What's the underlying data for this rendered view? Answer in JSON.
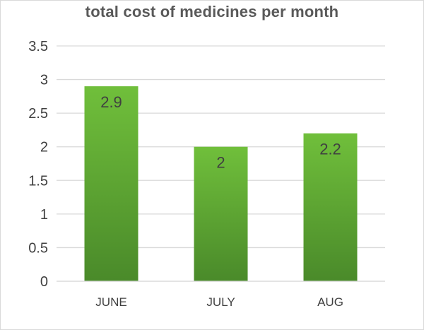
{
  "chart_data": {
    "type": "bar",
    "title": "total cost of medicines per month",
    "categories": [
      "JUNE",
      "JULY",
      "AUG"
    ],
    "values": [
      2.9,
      2,
      2.2
    ],
    "data_labels": [
      "2.9",
      "2",
      "2.2"
    ],
    "xlabel": "",
    "ylabel": "",
    "ylim": [
      0,
      3.5
    ],
    "yticks": [
      0,
      0.5,
      1,
      1.5,
      2,
      2.5,
      3,
      3.5
    ],
    "ytick_labels": [
      "0",
      "0.5",
      "1",
      "1.5",
      "2",
      "2.5",
      "3",
      "3.5"
    ],
    "grid": true,
    "legend": "none",
    "colors": {
      "bar_top": "#70bf3b",
      "bar_bottom": "#4a8a2a",
      "grid": "#d9d9d9",
      "text": "#404040",
      "title": "#595959"
    }
  }
}
